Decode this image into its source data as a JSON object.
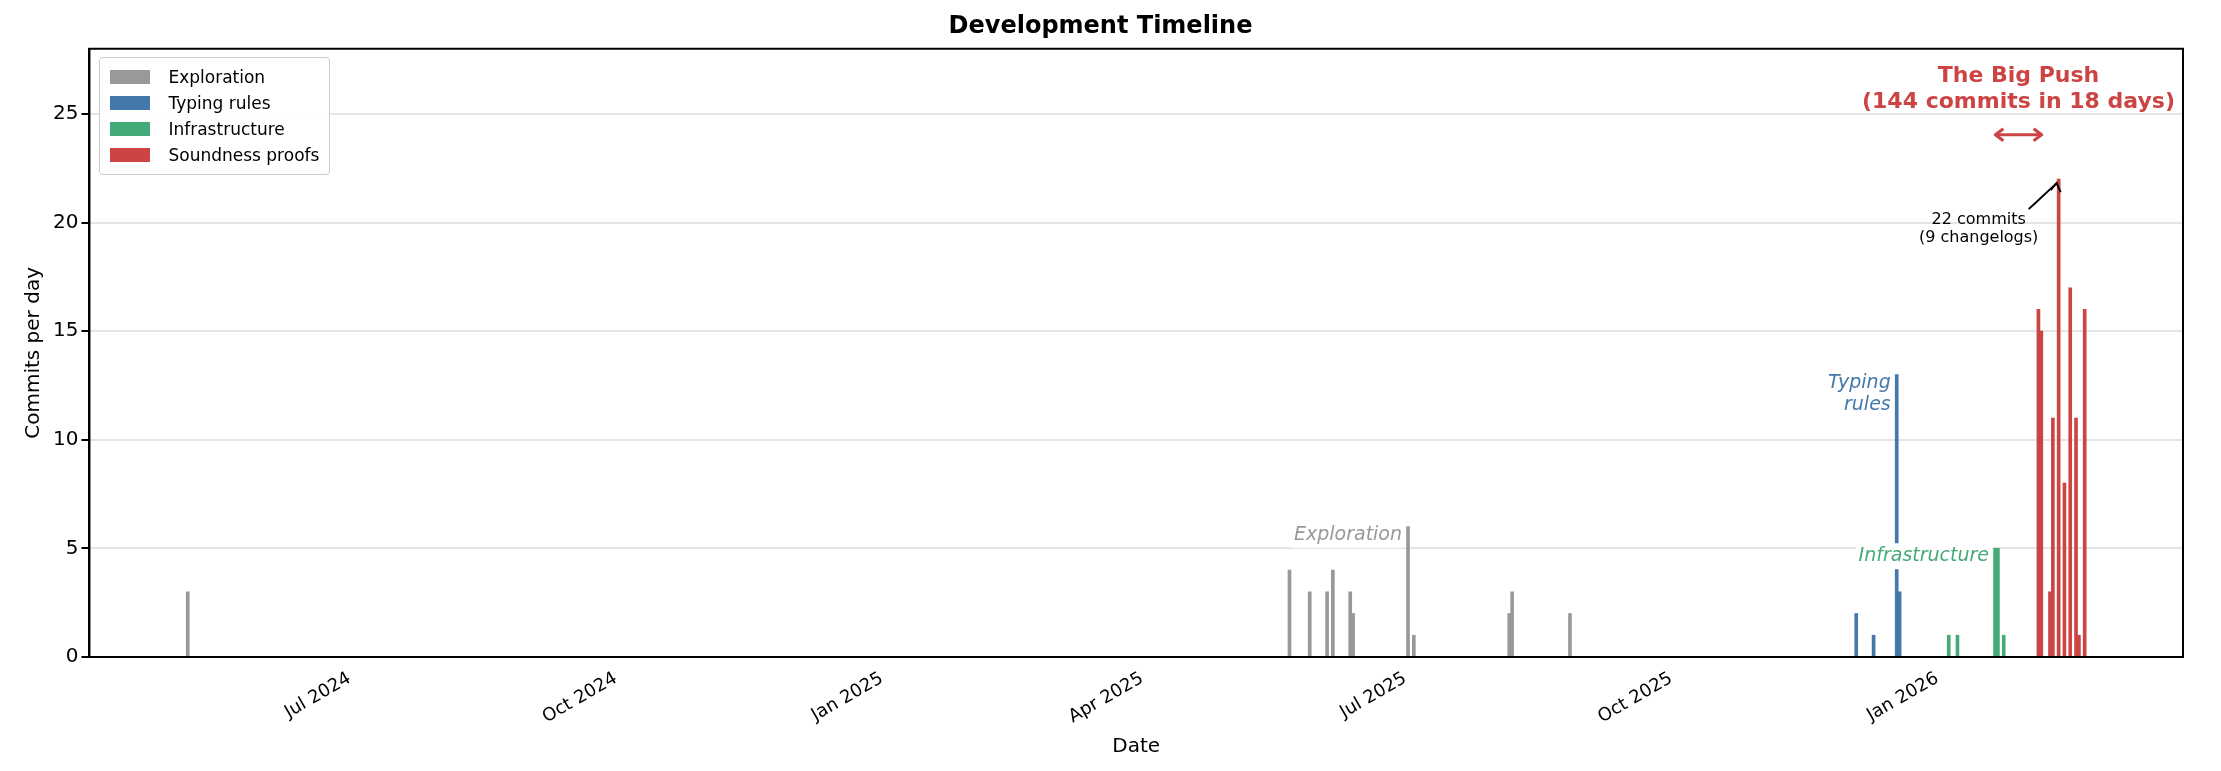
{
  "chart_data": {
    "type": "bar",
    "title": "Development Timeline",
    "xlabel": "Date",
    "ylabel": "Commits per day",
    "series": [
      {
        "name": "Exploration",
        "color": "#999999",
        "x": [
          "2024-05-06",
          "2025-05-22",
          "2025-05-29",
          "2025-06-04",
          "2025-06-06",
          "2025-06-12",
          "2025-06-13",
          "2025-07-02",
          "2025-07-04",
          "2025-08-06",
          "2025-08-07",
          "2025-08-27"
        ],
        "values": [
          3,
          4,
          3,
          3,
          4,
          3,
          2,
          6,
          1,
          2,
          3,
          2
        ]
      },
      {
        "name": "Typing rules",
        "color": "#4477aa",
        "x": [
          "2025-12-04",
          "2025-12-10",
          "2025-12-18",
          "2025-12-19"
        ],
        "values": [
          2,
          1,
          13,
          3
        ]
      },
      {
        "name": "Infrastructure",
        "color": "#44aa77",
        "x": [
          "2026-01-05",
          "2026-01-08",
          "2026-01-21",
          "2026-01-22",
          "2026-01-24"
        ],
        "values": [
          1,
          1,
          5,
          5,
          1
        ]
      },
      {
        "name": "Soundness proofs",
        "color": "#cc4444",
        "x": [
          "2026-02-05",
          "2026-02-06",
          "2026-02-09",
          "2026-02-10",
          "2026-02-12",
          "2026-02-14",
          "2026-02-16",
          "2026-02-18",
          "2026-02-19",
          "2026-02-21"
        ],
        "values": [
          16,
          15,
          3,
          11,
          22,
          8,
          17,
          11,
          1,
          16
        ]
      }
    ],
    "xlim": [
      "2024-04-02",
      "2026-03-27"
    ],
    "xticks": [
      {
        "value": "2024-07-01",
        "label": "Jul 2024"
      },
      {
        "value": "2024-10-01",
        "label": "Oct 2024"
      },
      {
        "value": "2025-01-01",
        "label": "Jan 2025"
      },
      {
        "value": "2025-04-01",
        "label": "Apr 2025"
      },
      {
        "value": "2025-07-01",
        "label": "Jul 2025"
      },
      {
        "value": "2025-10-01",
        "label": "Oct 2025"
      },
      {
        "value": "2026-01-01",
        "label": "Jan 2026"
      }
    ],
    "ylim": [
      0,
      28
    ],
    "yticks": [
      0,
      5,
      10,
      15,
      20,
      25
    ],
    "grid": "y",
    "legend": "top left",
    "annotations": [
      "Exploration",
      "Typing\nrules",
      "Infrastructure",
      "The Big Push\n(144 commits in 18 days)",
      {
        "text": "22 commits\n(9 changelogs)",
        "x": "2026-02-12",
        "y": 22
      }
    ]
  }
}
